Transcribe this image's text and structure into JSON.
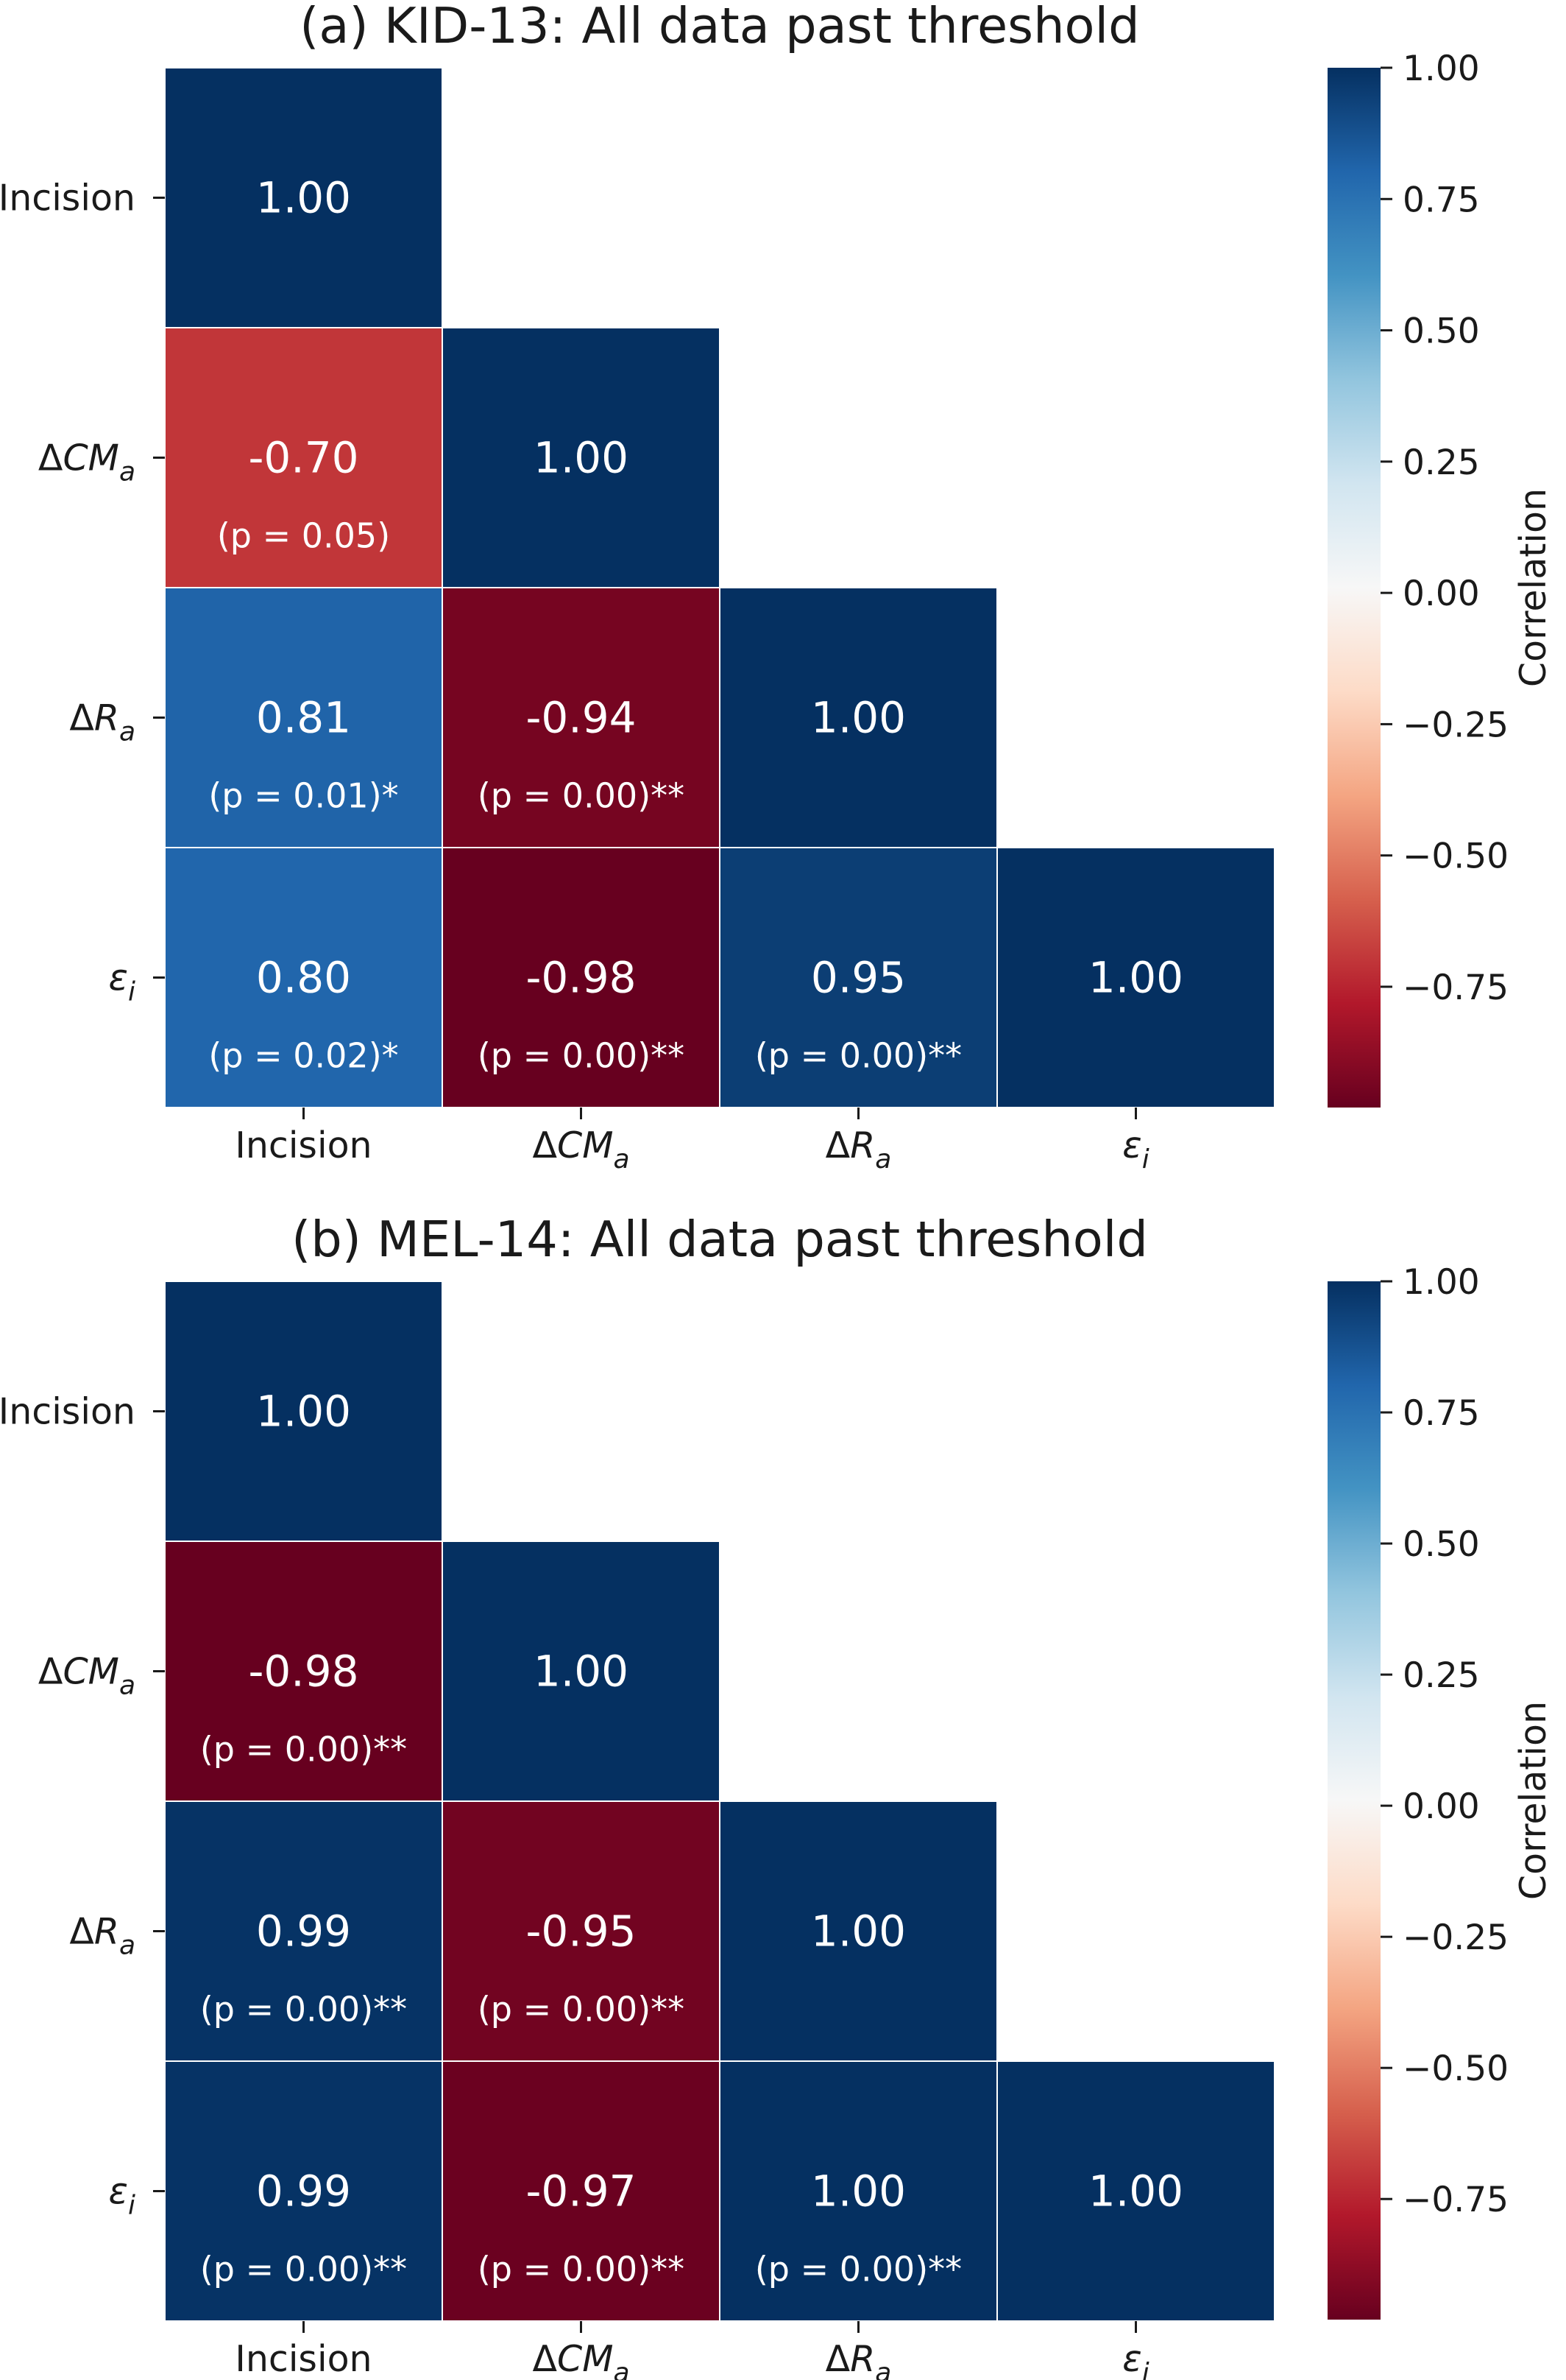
{
  "chart_data": [
    {
      "type": "heatmap",
      "title": "(a) KID-13: All data past threshold",
      "variables": [
        {
          "main": "Incision",
          "prefix": "",
          "sub": ""
        },
        {
          "main": "CM",
          "prefix": "Δ",
          "sub": "a"
        },
        {
          "main": "R",
          "prefix": "Δ",
          "sub": "a"
        },
        {
          "main": "ε",
          "prefix": "",
          "sub": "i"
        }
      ],
      "cells": [
        {
          "row": 0,
          "col": 0,
          "value": 1.0,
          "text": "1.00",
          "p_text": ""
        },
        {
          "row": 1,
          "col": 0,
          "value": -0.7,
          "text": "-0.70",
          "p_text": "(p = 0.05)"
        },
        {
          "row": 1,
          "col": 1,
          "value": 1.0,
          "text": "1.00",
          "p_text": ""
        },
        {
          "row": 2,
          "col": 0,
          "value": 0.81,
          "text": "0.81",
          "p_text": "(p = 0.01)*"
        },
        {
          "row": 2,
          "col": 1,
          "value": -0.94,
          "text": "-0.94",
          "p_text": "(p = 0.00)**"
        },
        {
          "row": 2,
          "col": 2,
          "value": 1.0,
          "text": "1.00",
          "p_text": ""
        },
        {
          "row": 3,
          "col": 0,
          "value": 0.8,
          "text": "0.80",
          "p_text": "(p = 0.02)*"
        },
        {
          "row": 3,
          "col": 1,
          "value": -0.98,
          "text": "-0.98",
          "p_text": "(p = 0.00)**"
        },
        {
          "row": 3,
          "col": 2,
          "value": 0.95,
          "text": "0.95",
          "p_text": "(p = 0.00)**"
        },
        {
          "row": 3,
          "col": 3,
          "value": 1.0,
          "text": "1.00",
          "p_text": ""
        }
      ],
      "colorbar": {
        "label": "Correlation",
        "range": [
          -0.98,
          1.0
        ],
        "ticks": [
          1.0,
          0.75,
          0.5,
          0.25,
          0.0,
          -0.25,
          -0.5,
          -0.75
        ],
        "tick_labels": [
          "1.00",
          "0.75",
          "0.50",
          "0.25",
          "0.00",
          "−0.25",
          "−0.50",
          "−0.75"
        ],
        "colormap": "RdBu"
      }
    },
    {
      "type": "heatmap",
      "title": "(b) MEL-14: All data past threshold",
      "variables": [
        {
          "main": "Incision",
          "prefix": "",
          "sub": ""
        },
        {
          "main": "CM",
          "prefix": "Δ",
          "sub": "a"
        },
        {
          "main": "R",
          "prefix": "Δ",
          "sub": "a"
        },
        {
          "main": "ε",
          "prefix": "",
          "sub": "i"
        }
      ],
      "cells": [
        {
          "row": 0,
          "col": 0,
          "value": 1.0,
          "text": "1.00",
          "p_text": ""
        },
        {
          "row": 1,
          "col": 0,
          "value": -0.98,
          "text": "-0.98",
          "p_text": "(p = 0.00)**"
        },
        {
          "row": 1,
          "col": 1,
          "value": 1.0,
          "text": "1.00",
          "p_text": ""
        },
        {
          "row": 2,
          "col": 0,
          "value": 0.99,
          "text": "0.99",
          "p_text": "(p = 0.00)**"
        },
        {
          "row": 2,
          "col": 1,
          "value": -0.95,
          "text": "-0.95",
          "p_text": "(p = 0.00)**"
        },
        {
          "row": 2,
          "col": 2,
          "value": 1.0,
          "text": "1.00",
          "p_text": ""
        },
        {
          "row": 3,
          "col": 0,
          "value": 0.99,
          "text": "0.99",
          "p_text": "(p = 0.00)**"
        },
        {
          "row": 3,
          "col": 1,
          "value": -0.97,
          "text": "-0.97",
          "p_text": "(p = 0.00)**"
        },
        {
          "row": 3,
          "col": 2,
          "value": 1.0,
          "text": "1.00",
          "p_text": "(p = 0.00)**"
        },
        {
          "row": 3,
          "col": 3,
          "value": 1.0,
          "text": "1.00",
          "p_text": ""
        }
      ],
      "colorbar": {
        "label": "Correlation",
        "range": [
          -0.98,
          1.0
        ],
        "ticks": [
          1.0,
          0.75,
          0.5,
          0.25,
          0.0,
          -0.25,
          -0.5,
          -0.75
        ],
        "tick_labels": [
          "1.00",
          "0.75",
          "0.50",
          "0.25",
          "0.00",
          "−0.25",
          "−0.50",
          "−0.75"
        ],
        "colormap": "RdBu"
      }
    }
  ]
}
